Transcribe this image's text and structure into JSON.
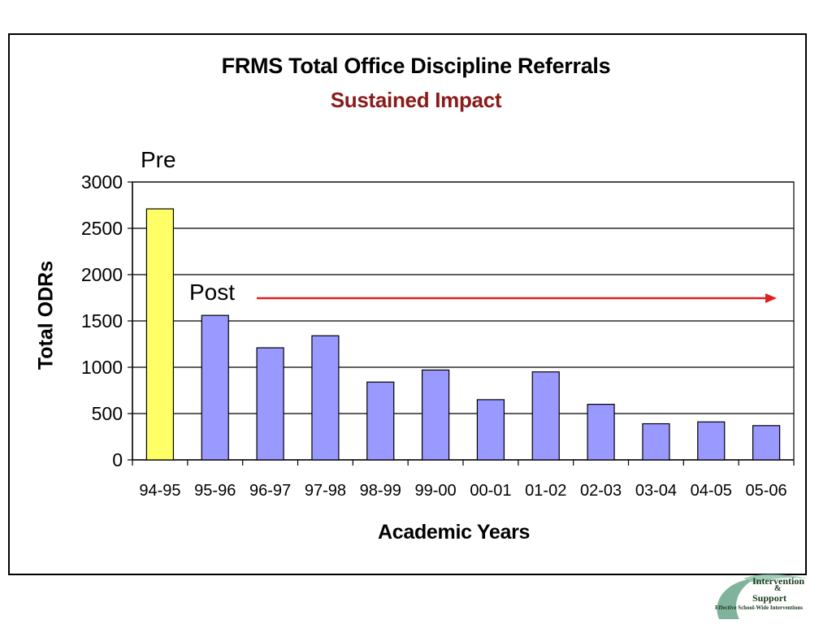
{
  "chart_data": {
    "type": "bar",
    "title": "FRMS Total Office Discipline Referrals",
    "subtitle": "Sustained Impact",
    "xlabel": "Academic Years",
    "ylabel": "Total ODRs",
    "ylim": [
      0,
      3000
    ],
    "yticks": [
      "0",
      "500",
      "1000",
      "1500",
      "2000",
      "2500",
      "3000"
    ],
    "grid": true,
    "categories": [
      "94-95",
      "95-96",
      "96-97",
      "97-98",
      "98-99",
      "99-00",
      "00-01",
      "01-02",
      "02-03",
      "03-04",
      "04-05",
      "05-06"
    ],
    "values": [
      2710,
      1560,
      1210,
      1340,
      840,
      970,
      650,
      950,
      600,
      390,
      410,
      370
    ],
    "bar_colors": [
      "#ffff66",
      "#9999ff",
      "#9999ff",
      "#9999ff",
      "#9999ff",
      "#9999ff",
      "#9999ff",
      "#9999ff",
      "#9999ff",
      "#9999ff",
      "#9999ff",
      "#9999ff"
    ],
    "annotations": {
      "pre": "Pre",
      "post": "Post"
    },
    "arrow_color": "#e02020",
    "title_color": "#000000",
    "subtitle_color": "#8b1a1a"
  },
  "logo": {
    "line1": "Intervention",
    "amp": "&",
    "line2": "Support",
    "tagline": "Effective School-Wide Interventions",
    "color": "#6aa68a"
  }
}
